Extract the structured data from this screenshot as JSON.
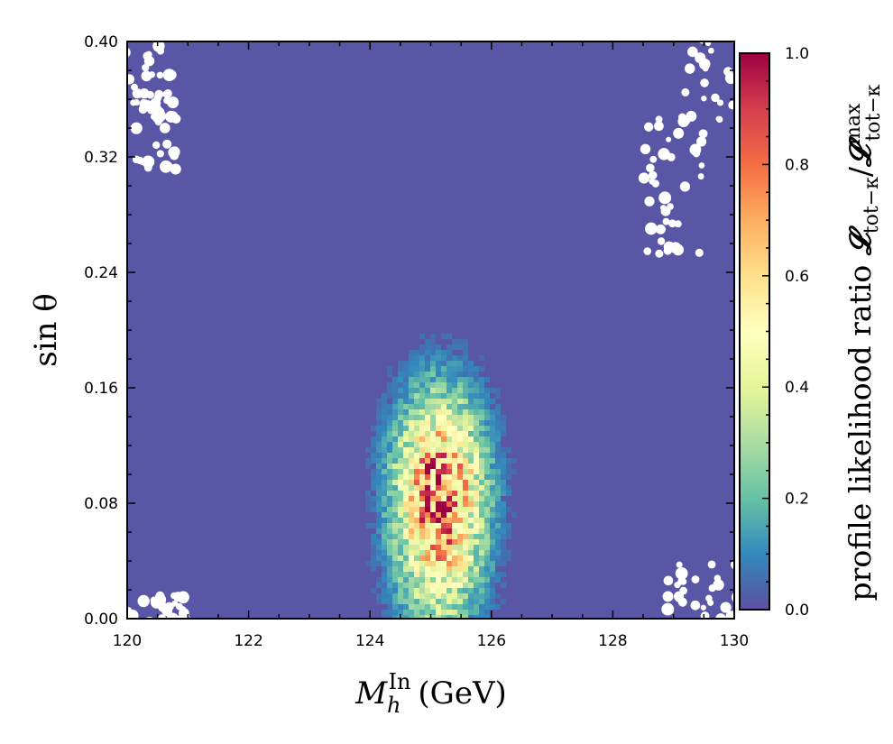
{
  "chart_data": {
    "type": "heatmap",
    "xlabel": "M_h^In (GeV)",
    "xlabel_main": "M",
    "xlabel_sub": "h",
    "xlabel_sup": "In",
    "xlabel_unit": "(GeV)",
    "ylabel": "sin θ",
    "xlim": [
      120,
      130
    ],
    "ylim": [
      0.0,
      0.4
    ],
    "xticks": [
      "120",
      "122",
      "124",
      "126",
      "128",
      "130"
    ],
    "xtick_values": [
      120,
      122,
      124,
      126,
      128,
      130
    ],
    "yticks": [
      "0.00",
      "0.08",
      "0.16",
      "0.24",
      "0.32",
      "0.40"
    ],
    "ytick_values": [
      0.0,
      0.08,
      0.16,
      0.24,
      0.32,
      0.4
    ],
    "colorbar": {
      "label": "profile likelihood ratio 𝓛tot−κ/𝓛max tot−κ",
      "label_text": "profile likelihood ratio ",
      "label_math": "𝓛",
      "label_sub1": "tot−κ",
      "label_sub2": "tot−κ",
      "label_sup2": "max",
      "range": [
        0.0,
        1.0
      ],
      "ticks": [
        "0.0",
        "0.2",
        "0.4",
        "0.6",
        "0.8",
        "1.0"
      ],
      "tick_values": [
        0.0,
        0.2,
        0.4,
        0.6,
        0.8,
        1.0
      ],
      "colormap": [
        "#5e4fa2",
        "#3288bd",
        "#66c2a5",
        "#abdda4",
        "#e6f598",
        "#ffffbf",
        "#fee08b",
        "#fdae61",
        "#f46d43",
        "#d53e4f",
        "#9e0142"
      ]
    },
    "background_value": 0.0,
    "background_color": "#5956a5",
    "peak": {
      "x": 125.1,
      "y": 0.09,
      "value": 1.0,
      "sigma_x": 0.5,
      "sigma_y": 0.045
    }
  }
}
